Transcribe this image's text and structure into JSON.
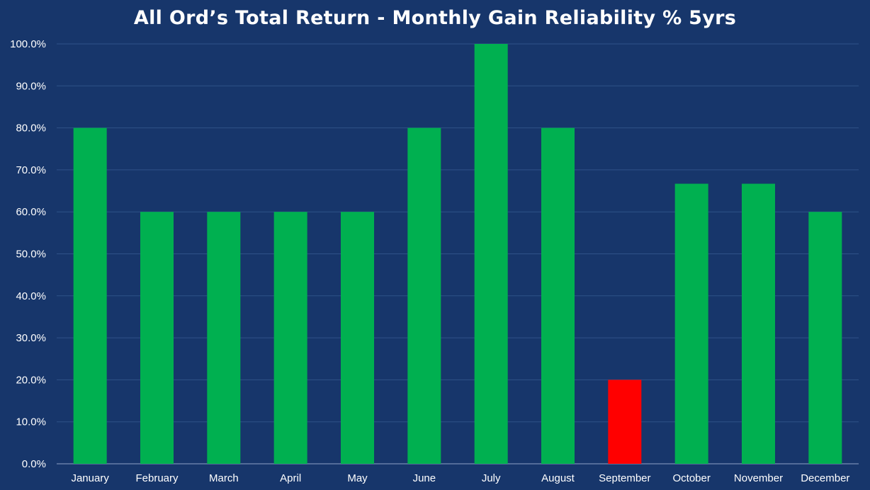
{
  "chart_data": {
    "type": "bar",
    "title": "All Ord’s Total Return - Monthly Gain Reliability % 5yrs",
    "categories": [
      "January",
      "February",
      "March",
      "April",
      "May",
      "June",
      "July",
      "August",
      "September",
      "October",
      "November",
      "December"
    ],
    "values": [
      80.0,
      60.0,
      60.0,
      60.0,
      60.0,
      80.0,
      100.0,
      80.0,
      20.0,
      66.7,
      66.7,
      60.0
    ],
    "y_ticks": [
      "0.0%",
      "10.0%",
      "20.0%",
      "30.0%",
      "40.0%",
      "50.0%",
      "60.0%",
      "70.0%",
      "80.0%",
      "90.0%",
      "100.0%"
    ],
    "xlabel": "",
    "ylabel": "",
    "ylim": [
      0,
      100
    ],
    "grid": true,
    "legend": "none",
    "colors": {
      "background": "#17366b",
      "gridline": "#2f5288",
      "bar_default": "#00b050",
      "bar_highlight": "#ff0000",
      "text": "#ffffff"
    },
    "highlight_categories": [
      "September"
    ]
  }
}
